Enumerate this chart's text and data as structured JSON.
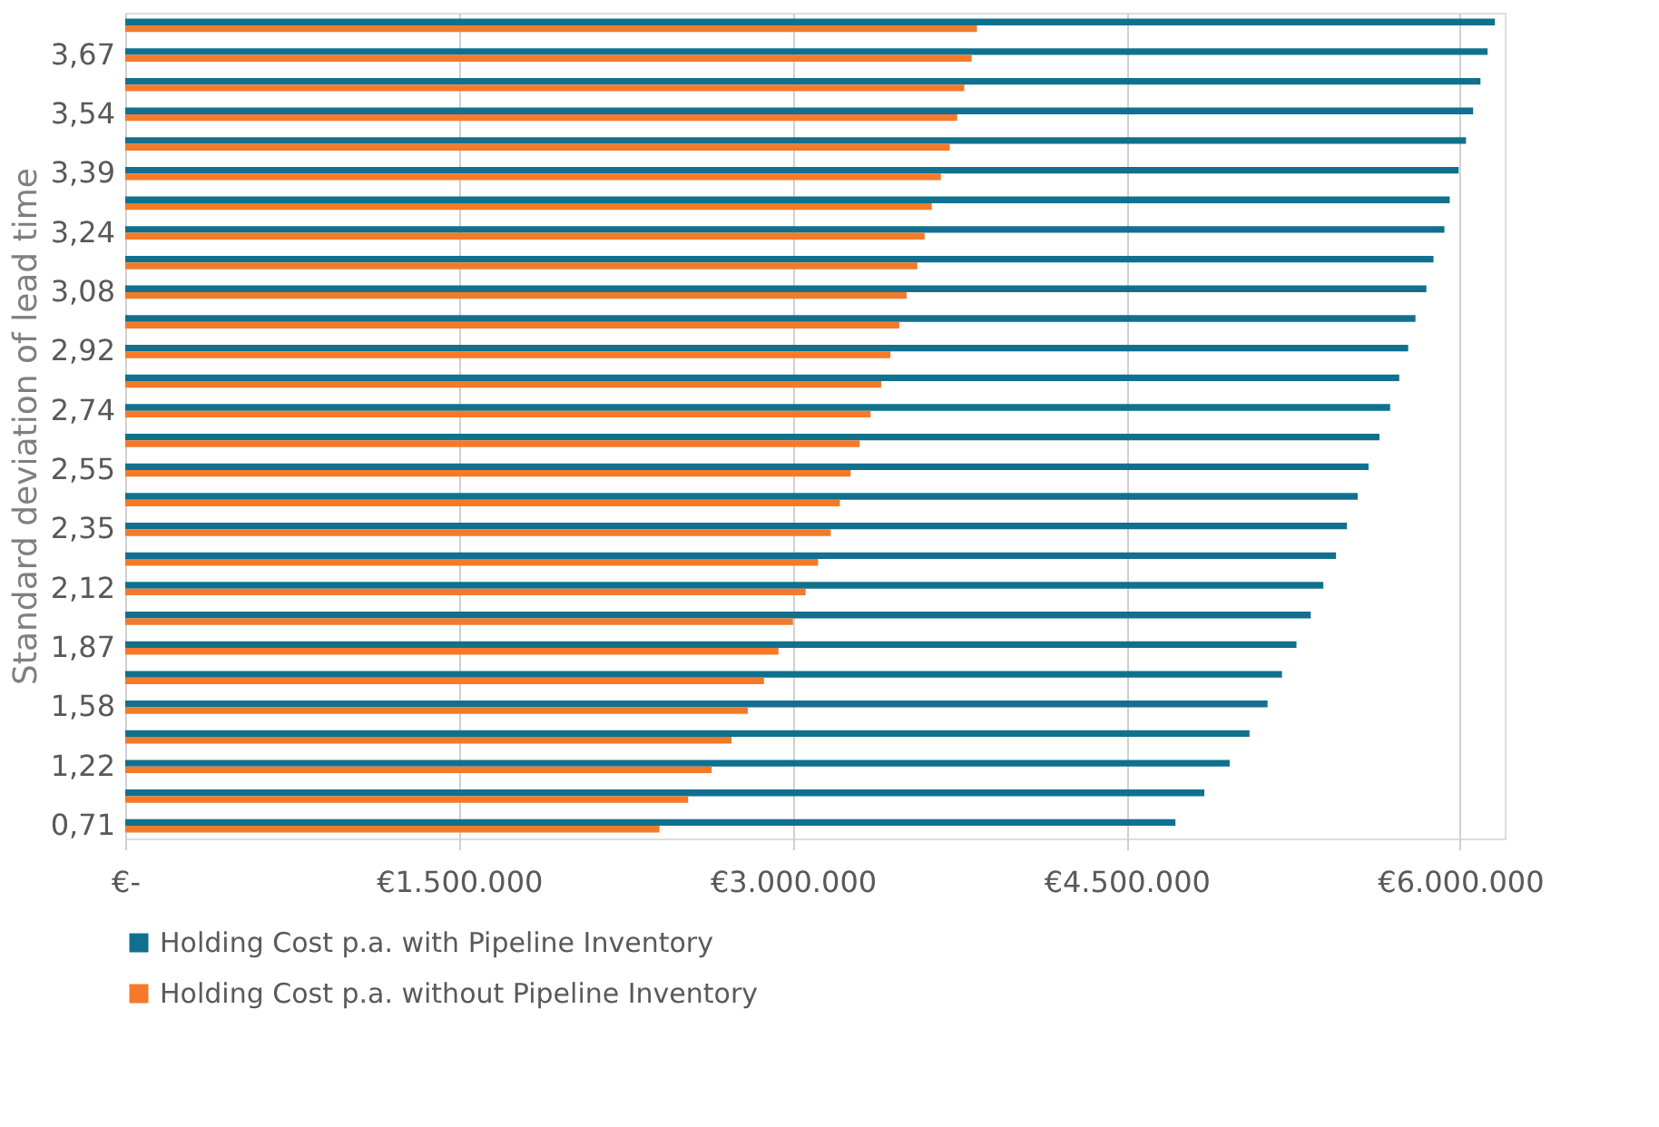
{
  "chart_data": {
    "type": "bar",
    "orientation": "horizontal",
    "ylabel": "Standard deviation of lead time",
    "categories": [
      null,
      "3,67",
      null,
      "3,54",
      null,
      "3,39",
      null,
      "3,24",
      null,
      "3,08",
      null,
      "2,92",
      null,
      "2,74",
      null,
      "2,55",
      null,
      "2,35",
      null,
      "2,12",
      null,
      "1,87",
      null,
      "1,58",
      null,
      "1,22",
      null,
      "0,71"
    ],
    "series": [
      {
        "name": "Holding Cost p.a. with Pipeline Inventory",
        "color": "#12708f",
        "values": [
          6156000,
          6123000,
          6091000,
          6058000,
          6026000,
          5993000,
          5953000,
          5929000,
          5880000,
          5848000,
          5799000,
          5766000,
          5726000,
          5685000,
          5637000,
          5588000,
          5539000,
          5491000,
          5442000,
          5385000,
          5328000,
          5264000,
          5199000,
          5134000,
          5053000,
          4964000,
          4850000,
          4720000
        ]
      },
      {
        "name": "Holding Cost p.a. without Pipeline Inventory",
        "color": "#f47a2a",
        "values": [
          3828000,
          3804000,
          3771000,
          3739000,
          3706000,
          3666000,
          3625000,
          3593000,
          3560000,
          3512000,
          3479000,
          3439000,
          3398000,
          3350000,
          3301000,
          3260000,
          3212000,
          3171000,
          3114000,
          3058000,
          3001000,
          2936000,
          2871000,
          2798000,
          2725000,
          2636000,
          2530000,
          2401000
        ]
      }
    ],
    "xlim": [
      0,
      6200000
    ],
    "xticks": [
      {
        "value": 0,
        "label": "€-"
      },
      {
        "value": 1500000,
        "label": "€1.500.000"
      },
      {
        "value": 3000000,
        "label": "€3.000.000"
      },
      {
        "value": 4500000,
        "label": "€4.500.000"
      },
      {
        "value": 6000000,
        "label": "€6.000.000"
      }
    ],
    "grid": "x",
    "legend": "bottom"
  }
}
